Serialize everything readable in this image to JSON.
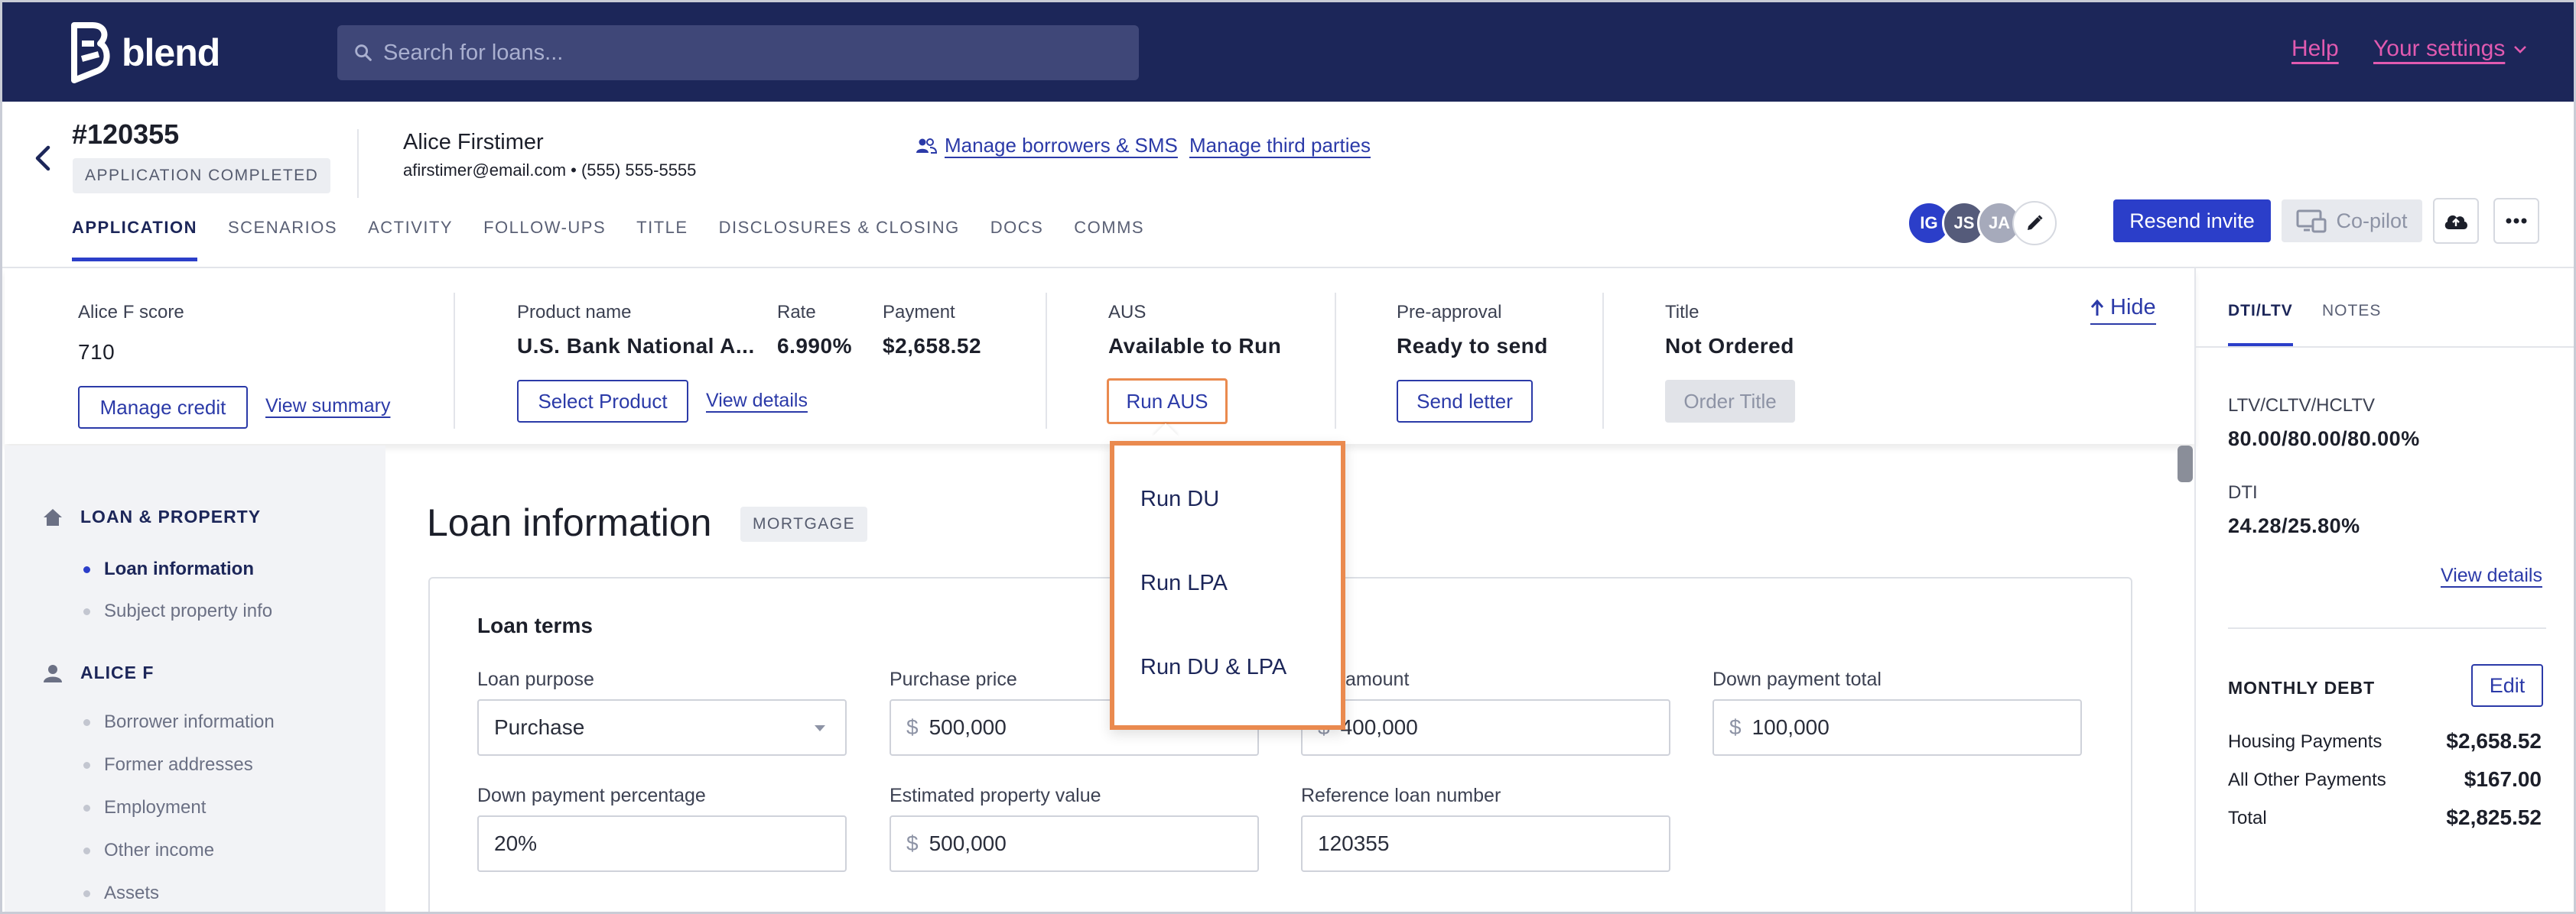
{
  "app": {
    "brand": "blend",
    "search_placeholder": "Search for loans...",
    "help_label": "Help",
    "settings_label": "Your settings"
  },
  "loan": {
    "id": "#120355",
    "status": "APPLICATION COMPLETED",
    "borrower_name": "Alice Firstimer",
    "borrower_contact": "afirstimer@email.com • (555) 555-5555",
    "manage_borrowers_label": "Manage borrowers & SMS",
    "manage_third_parties_label": "Manage third parties"
  },
  "tabs": [
    {
      "label": "APPLICATION",
      "active": true
    },
    {
      "label": "SCENARIOS",
      "active": false
    },
    {
      "label": "ACTIVITY",
      "active": false
    },
    {
      "label": "FOLLOW-UPS",
      "active": false
    },
    {
      "label": "TITLE",
      "active": false
    },
    {
      "label": "DISCLOSURES & CLOSING",
      "active": false
    },
    {
      "label": "DOCS",
      "active": false
    },
    {
      "label": "COMMS",
      "active": false
    }
  ],
  "team": {
    "avatars": [
      {
        "initials": "IG",
        "color": "#2b3ec9"
      },
      {
        "initials": "JS",
        "color": "#555b7a"
      },
      {
        "initials": "JA",
        "color": "#a6aabb"
      }
    ],
    "resend_invite_label": "Resend invite",
    "copilot_label": "Co-pilot"
  },
  "summary": {
    "credit": {
      "label": "Alice F score",
      "value": "710",
      "manage_label": "Manage credit",
      "view_label": "View summary"
    },
    "product": {
      "name_label": "Product name",
      "name_value": "U.S. Bank National A...",
      "rate_label": "Rate",
      "rate_value": "6.990%",
      "payment_label": "Payment",
      "payment_value": "$2,658.52",
      "select_label": "Select Product",
      "details_label": "View details"
    },
    "aus": {
      "label": "AUS",
      "value": "Available to Run",
      "button_label": "Run AUS"
    },
    "preapproval": {
      "label": "Pre-approval",
      "value": "Ready to send",
      "button_label": "Send letter"
    },
    "title": {
      "label": "Title",
      "value": "Not Ordered",
      "button_label": "Order Title"
    },
    "hide_label": "Hide"
  },
  "aus_menu": {
    "items": [
      "Run DU",
      "Run LPA",
      "Run DU & LPA"
    ]
  },
  "nav": {
    "sections": [
      {
        "title": "LOAN & PROPERTY",
        "items": [
          {
            "label": "Loan information",
            "active": true
          },
          {
            "label": "Subject property info",
            "active": false
          }
        ]
      },
      {
        "title": "ALICE F",
        "items": [
          {
            "label": "Borrower information",
            "active": false
          },
          {
            "label": "Former addresses",
            "active": false
          },
          {
            "label": "Employment",
            "active": false
          },
          {
            "label": "Other income",
            "active": false
          },
          {
            "label": "Assets",
            "active": false
          }
        ]
      }
    ]
  },
  "main": {
    "title": "Loan information",
    "tag": "MORTGAGE",
    "card_title": "Loan terms",
    "fields": {
      "loan_purpose": {
        "label": "Loan purpose",
        "value": "Purchase"
      },
      "purchase_price": {
        "label": "Purchase price",
        "prefix": "$",
        "value": "500,000"
      },
      "loan_amount": {
        "label": "amount",
        "prefix": "$",
        "value": "400,000"
      },
      "down_payment_total": {
        "label": "Down payment total",
        "prefix": "$",
        "value": "100,000"
      },
      "down_payment_percentage": {
        "label": "Down payment percentage",
        "value": "20%"
      },
      "estimated_property_value": {
        "label": "Estimated property value",
        "prefix": "$",
        "value": "500,000"
      },
      "reference_loan_number": {
        "label": "Reference loan number",
        "value": "120355"
      }
    }
  },
  "right_panel": {
    "tabs": [
      {
        "label": "DTI/LTV",
        "active": true
      },
      {
        "label": "NOTES",
        "active": false
      }
    ],
    "ltv_label": "LTV/CLTV/HCLTV",
    "ltv_value": "80.00/80.00/80.00%",
    "dti_label": "DTI",
    "dti_value": "24.28/25.80%",
    "view_details_label": "View details",
    "monthly_debt_label": "MONTHLY DEBT",
    "edit_label": "Edit",
    "debts": [
      {
        "label": "Housing Payments",
        "value": "$2,658.52"
      },
      {
        "label": "All Other Payments",
        "value": "$167.00"
      },
      {
        "label": "Total",
        "value": "$2,825.52"
      }
    ]
  },
  "colors": {
    "navy": "#1c2659",
    "primary": "#2b3ec9",
    "accent_pink": "#e15ab0",
    "highlight_orange": "#ea8a4f"
  }
}
